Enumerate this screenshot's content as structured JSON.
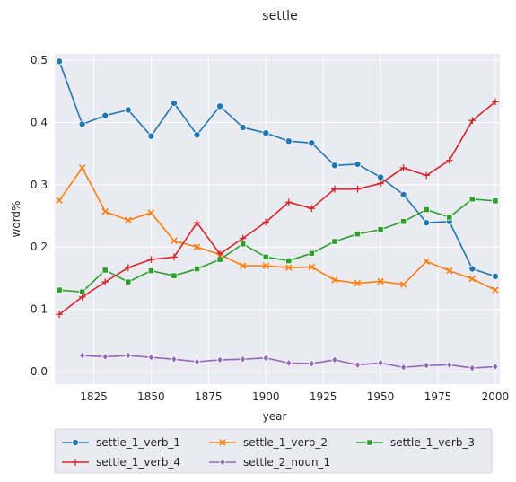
{
  "chart_data": {
    "type": "line",
    "title": "settle",
    "xlabel": "year",
    "ylabel": "word%",
    "xlim": [
      1808,
      2002
    ],
    "ylim": [
      -0.02,
      0.51
    ],
    "xticks": [
      1825,
      1850,
      1875,
      1900,
      1925,
      1950,
      1975,
      2000
    ],
    "yticks": [
      0.0,
      0.1,
      0.2,
      0.3,
      0.4,
      0.5
    ],
    "ytick_labels": [
      "0.0",
      "0.1",
      "0.2",
      "0.3",
      "0.4",
      "0.5"
    ],
    "grid": true,
    "legend_position": "bottom",
    "series": [
      {
        "name": "settle_1_verb_1",
        "color": "#1f77b4",
        "marker": "circle",
        "x": [
          1810,
          1820,
          1830,
          1840,
          1850,
          1860,
          1870,
          1880,
          1890,
          1900,
          1910,
          1920,
          1930,
          1940,
          1950,
          1960,
          1970,
          1980,
          1990,
          2000
        ],
        "values": [
          0.498,
          0.397,
          0.411,
          0.42,
          0.378,
          0.431,
          0.38,
          0.426,
          0.392,
          0.383,
          0.37,
          0.367,
          0.331,
          0.333,
          0.312,
          0.284,
          0.239,
          0.241,
          0.165,
          0.153
        ]
      },
      {
        "name": "settle_1_verb_2",
        "color": "#ff7f0e",
        "marker": "x",
        "x": [
          1810,
          1820,
          1830,
          1840,
          1850,
          1860,
          1870,
          1880,
          1890,
          1900,
          1910,
          1920,
          1930,
          1940,
          1950,
          1960,
          1970,
          1980,
          1990,
          2000
        ],
        "values": [
          0.275,
          0.327,
          0.257,
          0.243,
          0.255,
          0.21,
          0.2,
          0.188,
          0.17,
          0.17,
          0.167,
          0.168,
          0.147,
          0.142,
          0.145,
          0.14,
          0.177,
          0.162,
          0.149,
          0.131
        ]
      },
      {
        "name": "settle_1_verb_3",
        "color": "#2ca02c",
        "marker": "square",
        "x": [
          1810,
          1820,
          1830,
          1840,
          1850,
          1860,
          1870,
          1880,
          1890,
          1900,
          1910,
          1920,
          1930,
          1940,
          1950,
          1960,
          1970,
          1980,
          1990,
          2000
        ],
        "values": [
          0.131,
          0.128,
          0.163,
          0.144,
          0.162,
          0.154,
          0.165,
          0.18,
          0.205,
          0.184,
          0.178,
          0.19,
          0.209,
          0.221,
          0.228,
          0.241,
          0.26,
          0.248,
          0.277,
          0.274
        ]
      },
      {
        "name": "settle_1_verb_4",
        "color": "#d62728",
        "marker": "plus",
        "x": [
          1810,
          1820,
          1830,
          1840,
          1850,
          1860,
          1870,
          1880,
          1890,
          1900,
          1910,
          1920,
          1930,
          1940,
          1950,
          1960,
          1970,
          1980,
          1990,
          2000
        ],
        "values": [
          0.092,
          0.12,
          0.144,
          0.167,
          0.18,
          0.184,
          0.239,
          0.189,
          0.214,
          0.24,
          0.272,
          0.262,
          0.293,
          0.293,
          0.302,
          0.327,
          0.315,
          0.339,
          0.403,
          0.433
        ]
      },
      {
        "name": "settle_2_noun_1",
        "color": "#9467bd",
        "marker": "diamond",
        "x": [
          1820,
          1830,
          1840,
          1850,
          1860,
          1870,
          1880,
          1890,
          1900,
          1910,
          1920,
          1930,
          1940,
          1950,
          1960,
          1970,
          1980,
          1990,
          2000
        ],
        "values": [
          0.026,
          0.024,
          0.026,
          0.023,
          0.02,
          0.016,
          0.019,
          0.02,
          0.022,
          0.014,
          0.013,
          0.019,
          0.011,
          0.014,
          0.007,
          0.01,
          0.011,
          0.006,
          0.008
        ]
      }
    ]
  }
}
